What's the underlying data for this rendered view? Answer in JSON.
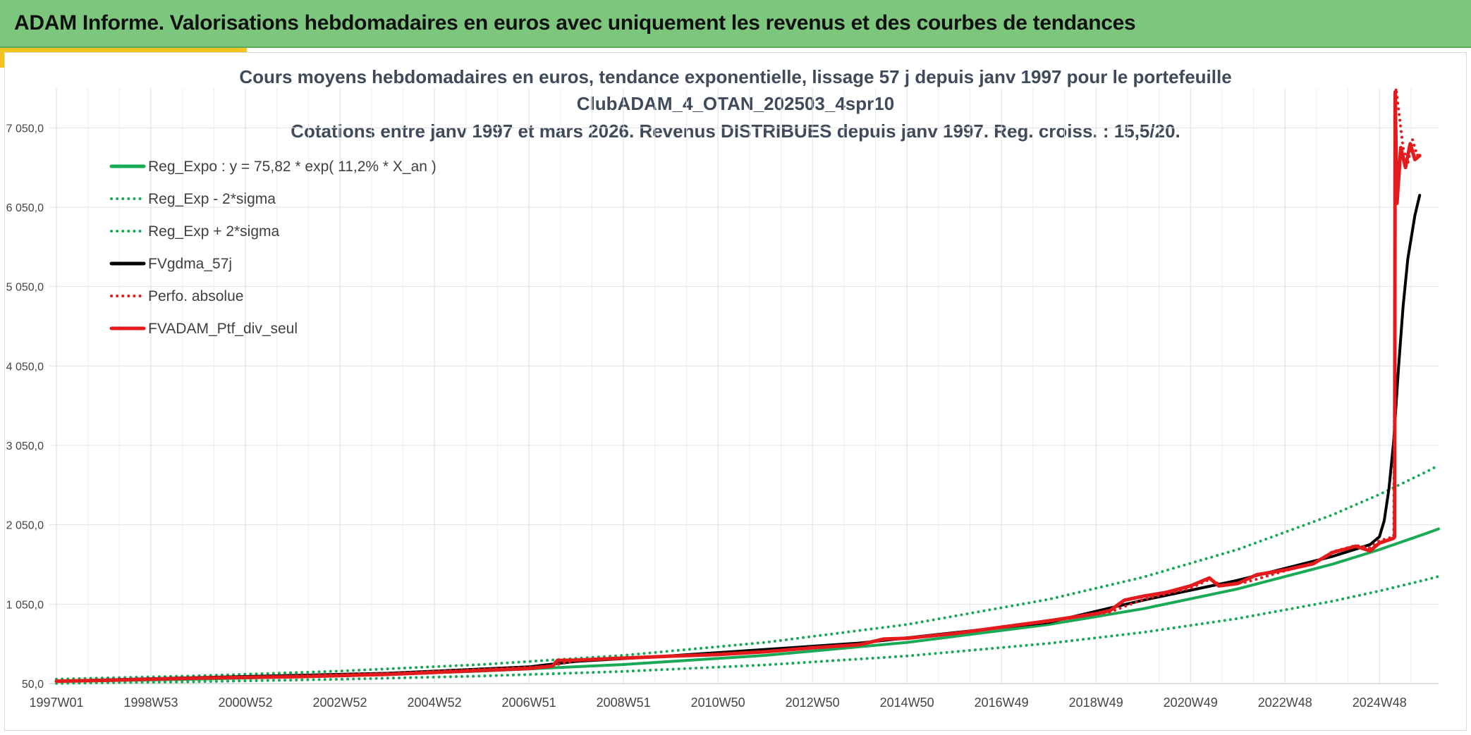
{
  "header": {
    "title": "ADAM Informe. Valorisations hebdomadaires en euros avec uniquement les revenus et des courbes de tendances"
  },
  "chart_data": {
    "type": "line",
    "title_lines": [
      "Cours moyens hebdomadaires en euros, tendance exponentielle, lissage 57 j depuis janv 1997 pour le portefeuille",
      "ClubADAM_4_OTAN_202503_4spr10",
      "Cotations entre janv 1997 et mars 2026. Revenus DISTRIBUES depuis janv 1997. Reg. croiss. : 15,5/20."
    ],
    "x_tick_labels": [
      "1997W01",
      "1998W53",
      "2000W52",
      "2002W52",
      "2004W52",
      "2006W51",
      "2008W51",
      "2010W50",
      "2012W50",
      "2014W50",
      "2016W49",
      "2018W49",
      "2020W49",
      "2022W48",
      "2024W48"
    ],
    "x_range_years": [
      1997.0,
      2026.25
    ],
    "y_tick_labels": [
      "50,0",
      "1 050,0",
      "2 050,0",
      "3 050,0",
      "4 050,0",
      "5 050,0",
      "6 050,0",
      "7 050,0"
    ],
    "ylim": [
      50,
      7550
    ],
    "legend": [
      {
        "label": "Reg_Expo : y = 75,82 * exp( 11,2% *  X_an )",
        "color": "#1aaa55",
        "style": "solid"
      },
      {
        "label": "Reg_Exp - 2*sigma",
        "color": "#1aaa55",
        "style": "dotted"
      },
      {
        "label": "Reg_Exp + 2*sigma",
        "color": "#1aaa55",
        "style": "dotted"
      },
      {
        "label": "FVgdma_57j",
        "color": "#000000",
        "style": "solid"
      },
      {
        "label": "Perfo. absolue",
        "color": "#e41a1c",
        "style": "dotted"
      },
      {
        "label": "FVADAM_Ptf_div_seul",
        "color": "#e41a1c",
        "style": "solid"
      }
    ],
    "series": [
      {
        "name": "Reg_Expo",
        "color": "#1aaa55",
        "style": "solid",
        "points": [
          [
            1997,
            76
          ],
          [
            2000,
            106
          ],
          [
            2003,
            148
          ],
          [
            2006,
            207
          ],
          [
            2009,
            290
          ],
          [
            2012,
            405
          ],
          [
            2015,
            568
          ],
          [
            2018,
            794
          ],
          [
            2020,
            993
          ],
          [
            2022,
            1242
          ],
          [
            2024,
            1553
          ],
          [
            2025,
            1737
          ],
          [
            2026,
            1943
          ],
          [
            2026.25,
            1998
          ]
        ]
      },
      {
        "name": "Reg_Exp - 2*sigma",
        "color": "#1aaa55",
        "style": "dotted",
        "points": [
          [
            1997,
            53
          ],
          [
            2000,
            74
          ],
          [
            2003,
            104
          ],
          [
            2006,
            145
          ],
          [
            2009,
            203
          ],
          [
            2012,
            284
          ],
          [
            2015,
            397
          ],
          [
            2018,
            556
          ],
          [
            2020,
            695
          ],
          [
            2022,
            869
          ],
          [
            2024,
            1087
          ],
          [
            2025,
            1216
          ],
          [
            2026,
            1360
          ],
          [
            2026.25,
            1399
          ]
        ]
      },
      {
        "name": "Reg_Exp + 2*sigma",
        "color": "#1aaa55",
        "style": "dotted",
        "points": [
          [
            1997,
            106
          ],
          [
            2000,
            148
          ],
          [
            2003,
            207
          ],
          [
            2006,
            290
          ],
          [
            2009,
            405
          ],
          [
            2012,
            568
          ],
          [
            2015,
            794
          ],
          [
            2018,
            1111
          ],
          [
            2020,
            1390
          ],
          [
            2022,
            1739
          ],
          [
            2024,
            2174
          ],
          [
            2025,
            2432
          ],
          [
            2026,
            2720
          ],
          [
            2026.25,
            2798
          ]
        ]
      },
      {
        "name": "FVgdma_57j",
        "color": "#000000",
        "style": "solid",
        "points": [
          [
            1997,
            80
          ],
          [
            2000,
            125
          ],
          [
            2004,
            180
          ],
          [
            2007,
            260
          ],
          [
            2008,
            330
          ],
          [
            2010,
            400
          ],
          [
            2014,
            560
          ],
          [
            2018,
            820
          ],
          [
            2020,
            1100
          ],
          [
            2022,
            1350
          ],
          [
            2024,
            1650
          ],
          [
            2024.8,
            1800
          ],
          [
            2025.0,
            1900
          ],
          [
            2025.1,
            2100
          ],
          [
            2025.2,
            2500
          ],
          [
            2025.3,
            3100
          ],
          [
            2025.4,
            4000
          ],
          [
            2025.5,
            4800
          ],
          [
            2025.6,
            5400
          ],
          [
            2025.75,
            5950
          ],
          [
            2025.85,
            6200
          ]
        ]
      },
      {
        "name": "Perfo. absolue",
        "color": "#e41a1c",
        "style": "dotted",
        "points": [
          [
            1997,
            78
          ],
          [
            2000,
            118
          ],
          [
            2004,
            176
          ],
          [
            2007,
            255
          ],
          [
            2007.5,
            275
          ],
          [
            2008,
            340
          ],
          [
            2010,
            395
          ],
          [
            2012,
            455
          ],
          [
            2014,
            535
          ],
          [
            2014.5,
            600
          ],
          [
            2016,
            680
          ],
          [
            2018,
            830
          ],
          [
            2019.3,
            950
          ],
          [
            2020,
            1110
          ],
          [
            2021,
            1250
          ],
          [
            2021.4,
            1360
          ],
          [
            2021.7,
            1280
          ],
          [
            2022.2,
            1330
          ],
          [
            2023,
            1470
          ],
          [
            2023.6,
            1560
          ],
          [
            2024,
            1710
          ],
          [
            2024.5,
            1790
          ],
          [
            2024.8,
            1760
          ],
          [
            2025,
            1850
          ],
          [
            2025.3,
            1900
          ],
          [
            2025.35,
            7550
          ],
          [
            2025.5,
            6800
          ],
          [
            2025.6,
            6600
          ],
          [
            2025.7,
            6900
          ],
          [
            2025.8,
            6700
          ],
          [
            2025.85,
            6750
          ]
        ]
      },
      {
        "name": "FVADAM_Ptf_div_seul",
        "color": "#e41a1c",
        "style": "solid",
        "points": [
          [
            1997,
            80
          ],
          [
            1998,
            90
          ],
          [
            1999,
            105
          ],
          [
            2000,
            118
          ],
          [
            2001,
            128
          ],
          [
            2002,
            135
          ],
          [
            2003,
            150
          ],
          [
            2004,
            165
          ],
          [
            2005,
            190
          ],
          [
            2006,
            215
          ],
          [
            2007,
            240
          ],
          [
            2007.5,
            270
          ],
          [
            2007.6,
            340
          ],
          [
            2008,
            345
          ],
          [
            2009,
            370
          ],
          [
            2010,
            395
          ],
          [
            2011,
            415
          ],
          [
            2012,
            450
          ],
          [
            2013,
            500
          ],
          [
            2014,
            540
          ],
          [
            2014.5,
            610
          ],
          [
            2015,
            620
          ],
          [
            2016,
            680
          ],
          [
            2017,
            760
          ],
          [
            2018,
            840
          ],
          [
            2019,
            930
          ],
          [
            2019.3,
            970
          ],
          [
            2019.6,
            1100
          ],
          [
            2020,
            1150
          ],
          [
            2020.5,
            1200
          ],
          [
            2021,
            1280
          ],
          [
            2021.4,
            1380
          ],
          [
            2021.6,
            1280
          ],
          [
            2022,
            1310
          ],
          [
            2022.4,
            1420
          ],
          [
            2023,
            1480
          ],
          [
            2023.6,
            1560
          ],
          [
            2024,
            1700
          ],
          [
            2024.5,
            1780
          ],
          [
            2024.8,
            1720
          ],
          [
            2025,
            1820
          ],
          [
            2025.3,
            1880
          ],
          [
            2025.32,
            1900
          ],
          [
            2025.33,
            7500
          ],
          [
            2025.37,
            6100
          ],
          [
            2025.45,
            6800
          ],
          [
            2025.55,
            6550
          ],
          [
            2025.65,
            6850
          ],
          [
            2025.75,
            6650
          ],
          [
            2025.85,
            6700
          ]
        ]
      }
    ]
  }
}
